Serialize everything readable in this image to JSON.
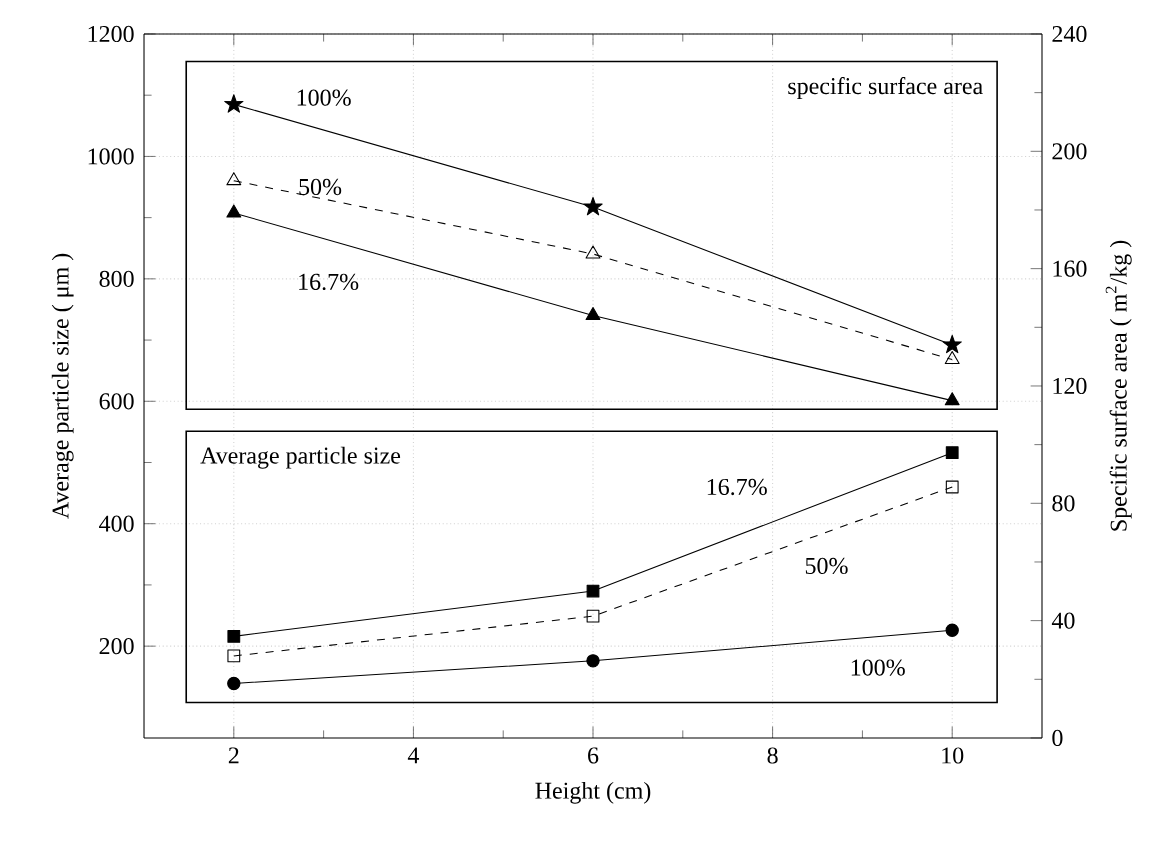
{
  "chart_data": {
    "type": "line",
    "xlabel": "Height (cm)",
    "ylabel": "Average particle size ( μm )",
    "y2label": "Specific surface area ( m$^{2}$/kg )",
    "x": [
      2,
      6,
      10
    ],
    "xlim": [
      1,
      11
    ],
    "xticks": [
      2,
      4,
      6,
      8,
      10
    ],
    "ylim": [
      50,
      1200
    ],
    "yticks": [
      200,
      400,
      600,
      800,
      1000,
      1200
    ],
    "y2lim": [
      0,
      240
    ],
    "y2ticks": [
      0,
      40,
      80,
      120,
      160,
      200,
      240
    ],
    "grid": true,
    "annotations": [
      "specific surface area",
      "Average particle size"
    ],
    "series": [
      {
        "name": "100%",
        "color": "#000000",
        "axis": "y2",
        "marker": "star",
        "line_style": "solid",
        "values": [
          216,
          181,
          134
        ]
      },
      {
        "name": "50%",
        "color": "#000000",
        "axis": "y2",
        "marker": "triangle-open",
        "line_style": "dashed",
        "values": [
          190,
          165,
          129
        ]
      },
      {
        "name": "16.7%",
        "color": "#000000",
        "axis": "y2",
        "marker": "triangle",
        "line_style": "solid",
        "values": [
          179,
          144,
          115
        ]
      },
      {
        "name": "16.7%",
        "color": "#000000",
        "marker": "square",
        "line_style": "solid",
        "values": [
          216,
          290,
          516
        ]
      },
      {
        "name": "50%",
        "color": "#000000",
        "marker": "square-open",
        "line_style": "dashed",
        "values": [
          184,
          249,
          460
        ]
      },
      {
        "name": "100%",
        "color": "#000000",
        "marker": "circle",
        "line_style": "solid",
        "values": [
          139,
          176,
          226
        ]
      }
    ]
  }
}
